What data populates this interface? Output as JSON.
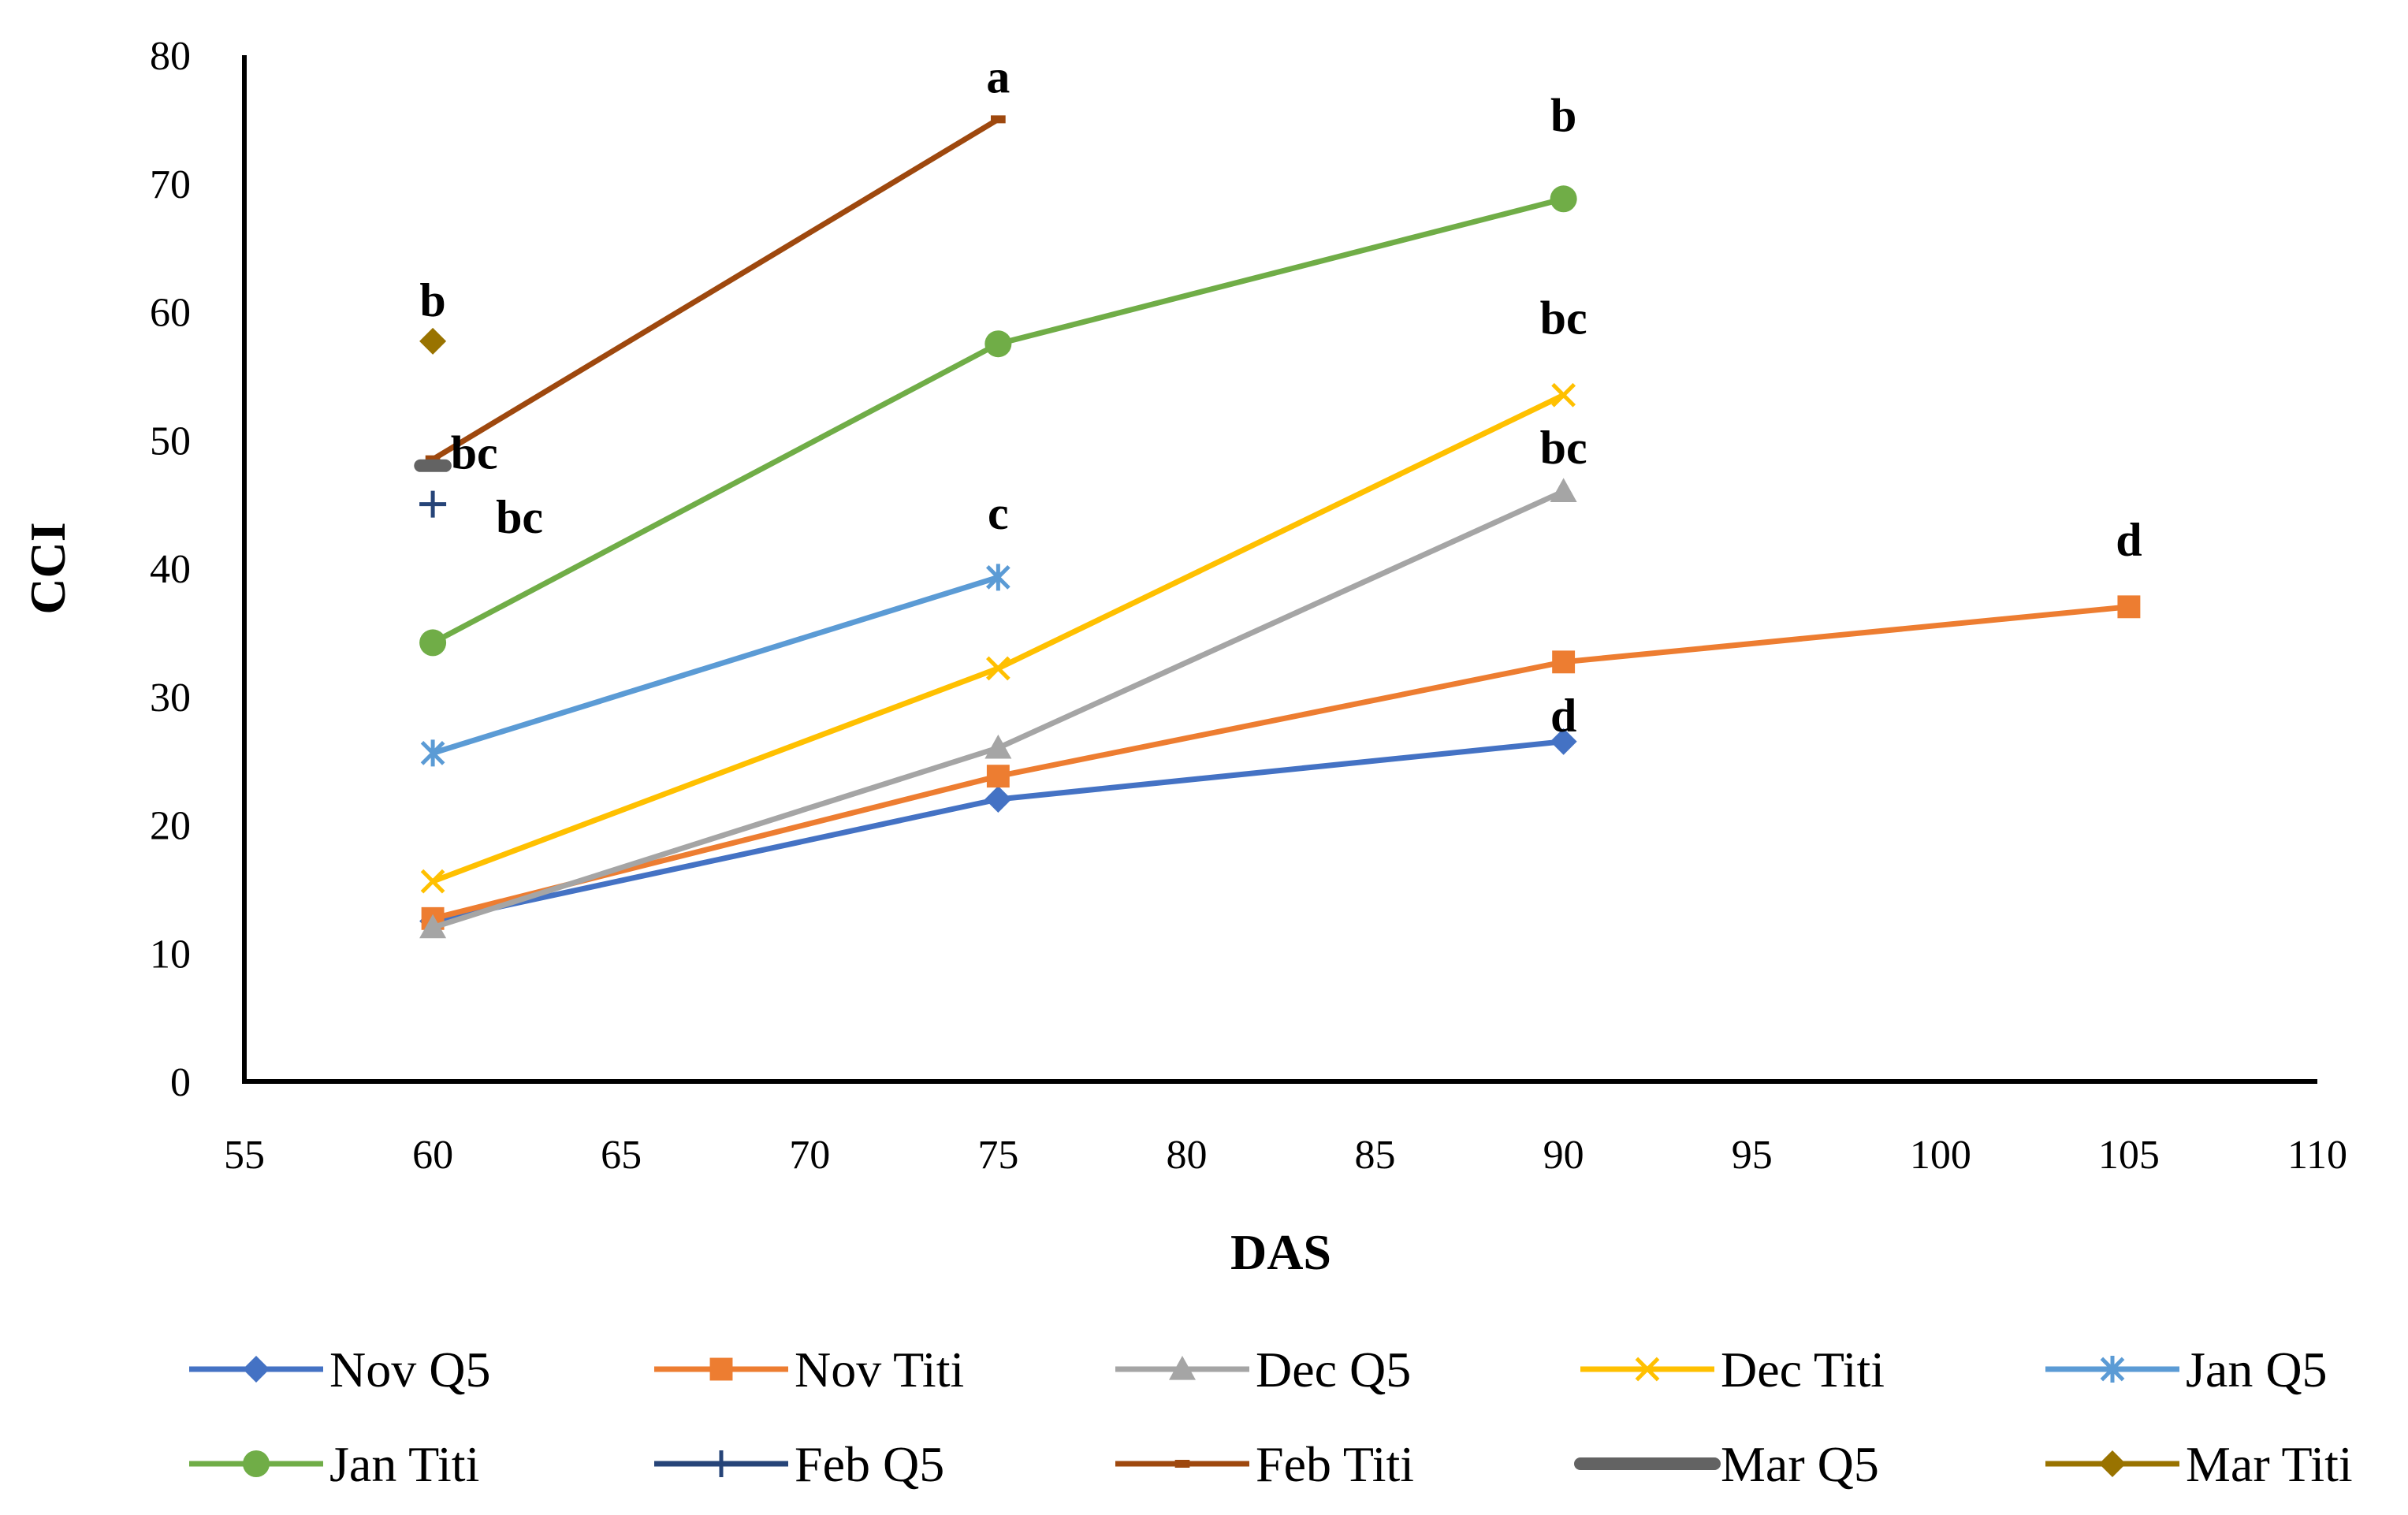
{
  "chart_data": {
    "type": "line",
    "xlabel": "DAS",
    "ylabel": "CCI",
    "xlim": [
      55,
      110
    ],
    "ylim": [
      0,
      80
    ],
    "xticks": [
      55,
      60,
      65,
      70,
      75,
      80,
      85,
      90,
      95,
      100,
      105,
      110
    ],
    "yticks": [
      0,
      10,
      20,
      30,
      40,
      50,
      60,
      70,
      80
    ],
    "grid": false,
    "legend_position": "bottom",
    "series": [
      {
        "name": "Nov Q5",
        "color": "#4472C4",
        "marker": "diamond",
        "x": [
          60,
          75,
          90
        ],
        "y": [
          12.5,
          22,
          26.5
        ]
      },
      {
        "name": "Nov Titi",
        "color": "#ED7D31",
        "marker": "square",
        "x": [
          60,
          75,
          90,
          105
        ],
        "y": [
          12.7,
          23.8,
          32.7,
          37
        ]
      },
      {
        "name": "Dec Q5",
        "color": "#A5A5A5",
        "marker": "triangle",
        "x": [
          60,
          75,
          90
        ],
        "y": [
          12,
          26,
          46
        ]
      },
      {
        "name": "Dec Titi",
        "color": "#FFC000",
        "marker": "x",
        "x": [
          60,
          75,
          90
        ],
        "y": [
          15.6,
          32.2,
          53.5
        ]
      },
      {
        "name": "Jan Q5",
        "color": "#5B9BD5",
        "marker": "star",
        "x": [
          60,
          75
        ],
        "y": [
          25.6,
          39.3
        ]
      },
      {
        "name": "Jan Titi",
        "color": "#70AD47",
        "marker": "circle",
        "x": [
          60,
          75,
          90
        ],
        "y": [
          34.2,
          57.5,
          68.8
        ]
      },
      {
        "name": "Feb Q5",
        "color": "#264478",
        "marker": "plus",
        "x": [
          60
        ],
        "y": [
          45
        ]
      },
      {
        "name": "Feb Titi",
        "color": "#9E480E",
        "marker": "dash",
        "x": [
          60,
          75
        ],
        "y": [
          48.5,
          75
        ]
      },
      {
        "name": "Mar Q5",
        "color": "#636363",
        "marker": "bar",
        "x": [
          60
        ],
        "y": [
          48
        ]
      },
      {
        "name": "Mar Titi",
        "color": "#997300",
        "marker": "diamond",
        "x": [
          60
        ],
        "y": [
          57.7
        ]
      }
    ],
    "annotations": [
      {
        "text": "a",
        "x": 75,
        "y": 78.3
      },
      {
        "text": "b",
        "x": 90,
        "y": 75.3
      },
      {
        "text": "b",
        "x": 60,
        "y": 60.9
      },
      {
        "text": "bc",
        "x": 90,
        "y": 59.5
      },
      {
        "text": "bc",
        "x": 61.1,
        "y": 49
      },
      {
        "text": "bc",
        "x": 90,
        "y": 49.4
      },
      {
        "text": "bc",
        "x": 62.3,
        "y": 44
      },
      {
        "text": "c",
        "x": 75,
        "y": 44.3
      },
      {
        "text": "d",
        "x": 105,
        "y": 42.2
      },
      {
        "text": "d",
        "x": 90,
        "y": 28.5
      }
    ]
  }
}
